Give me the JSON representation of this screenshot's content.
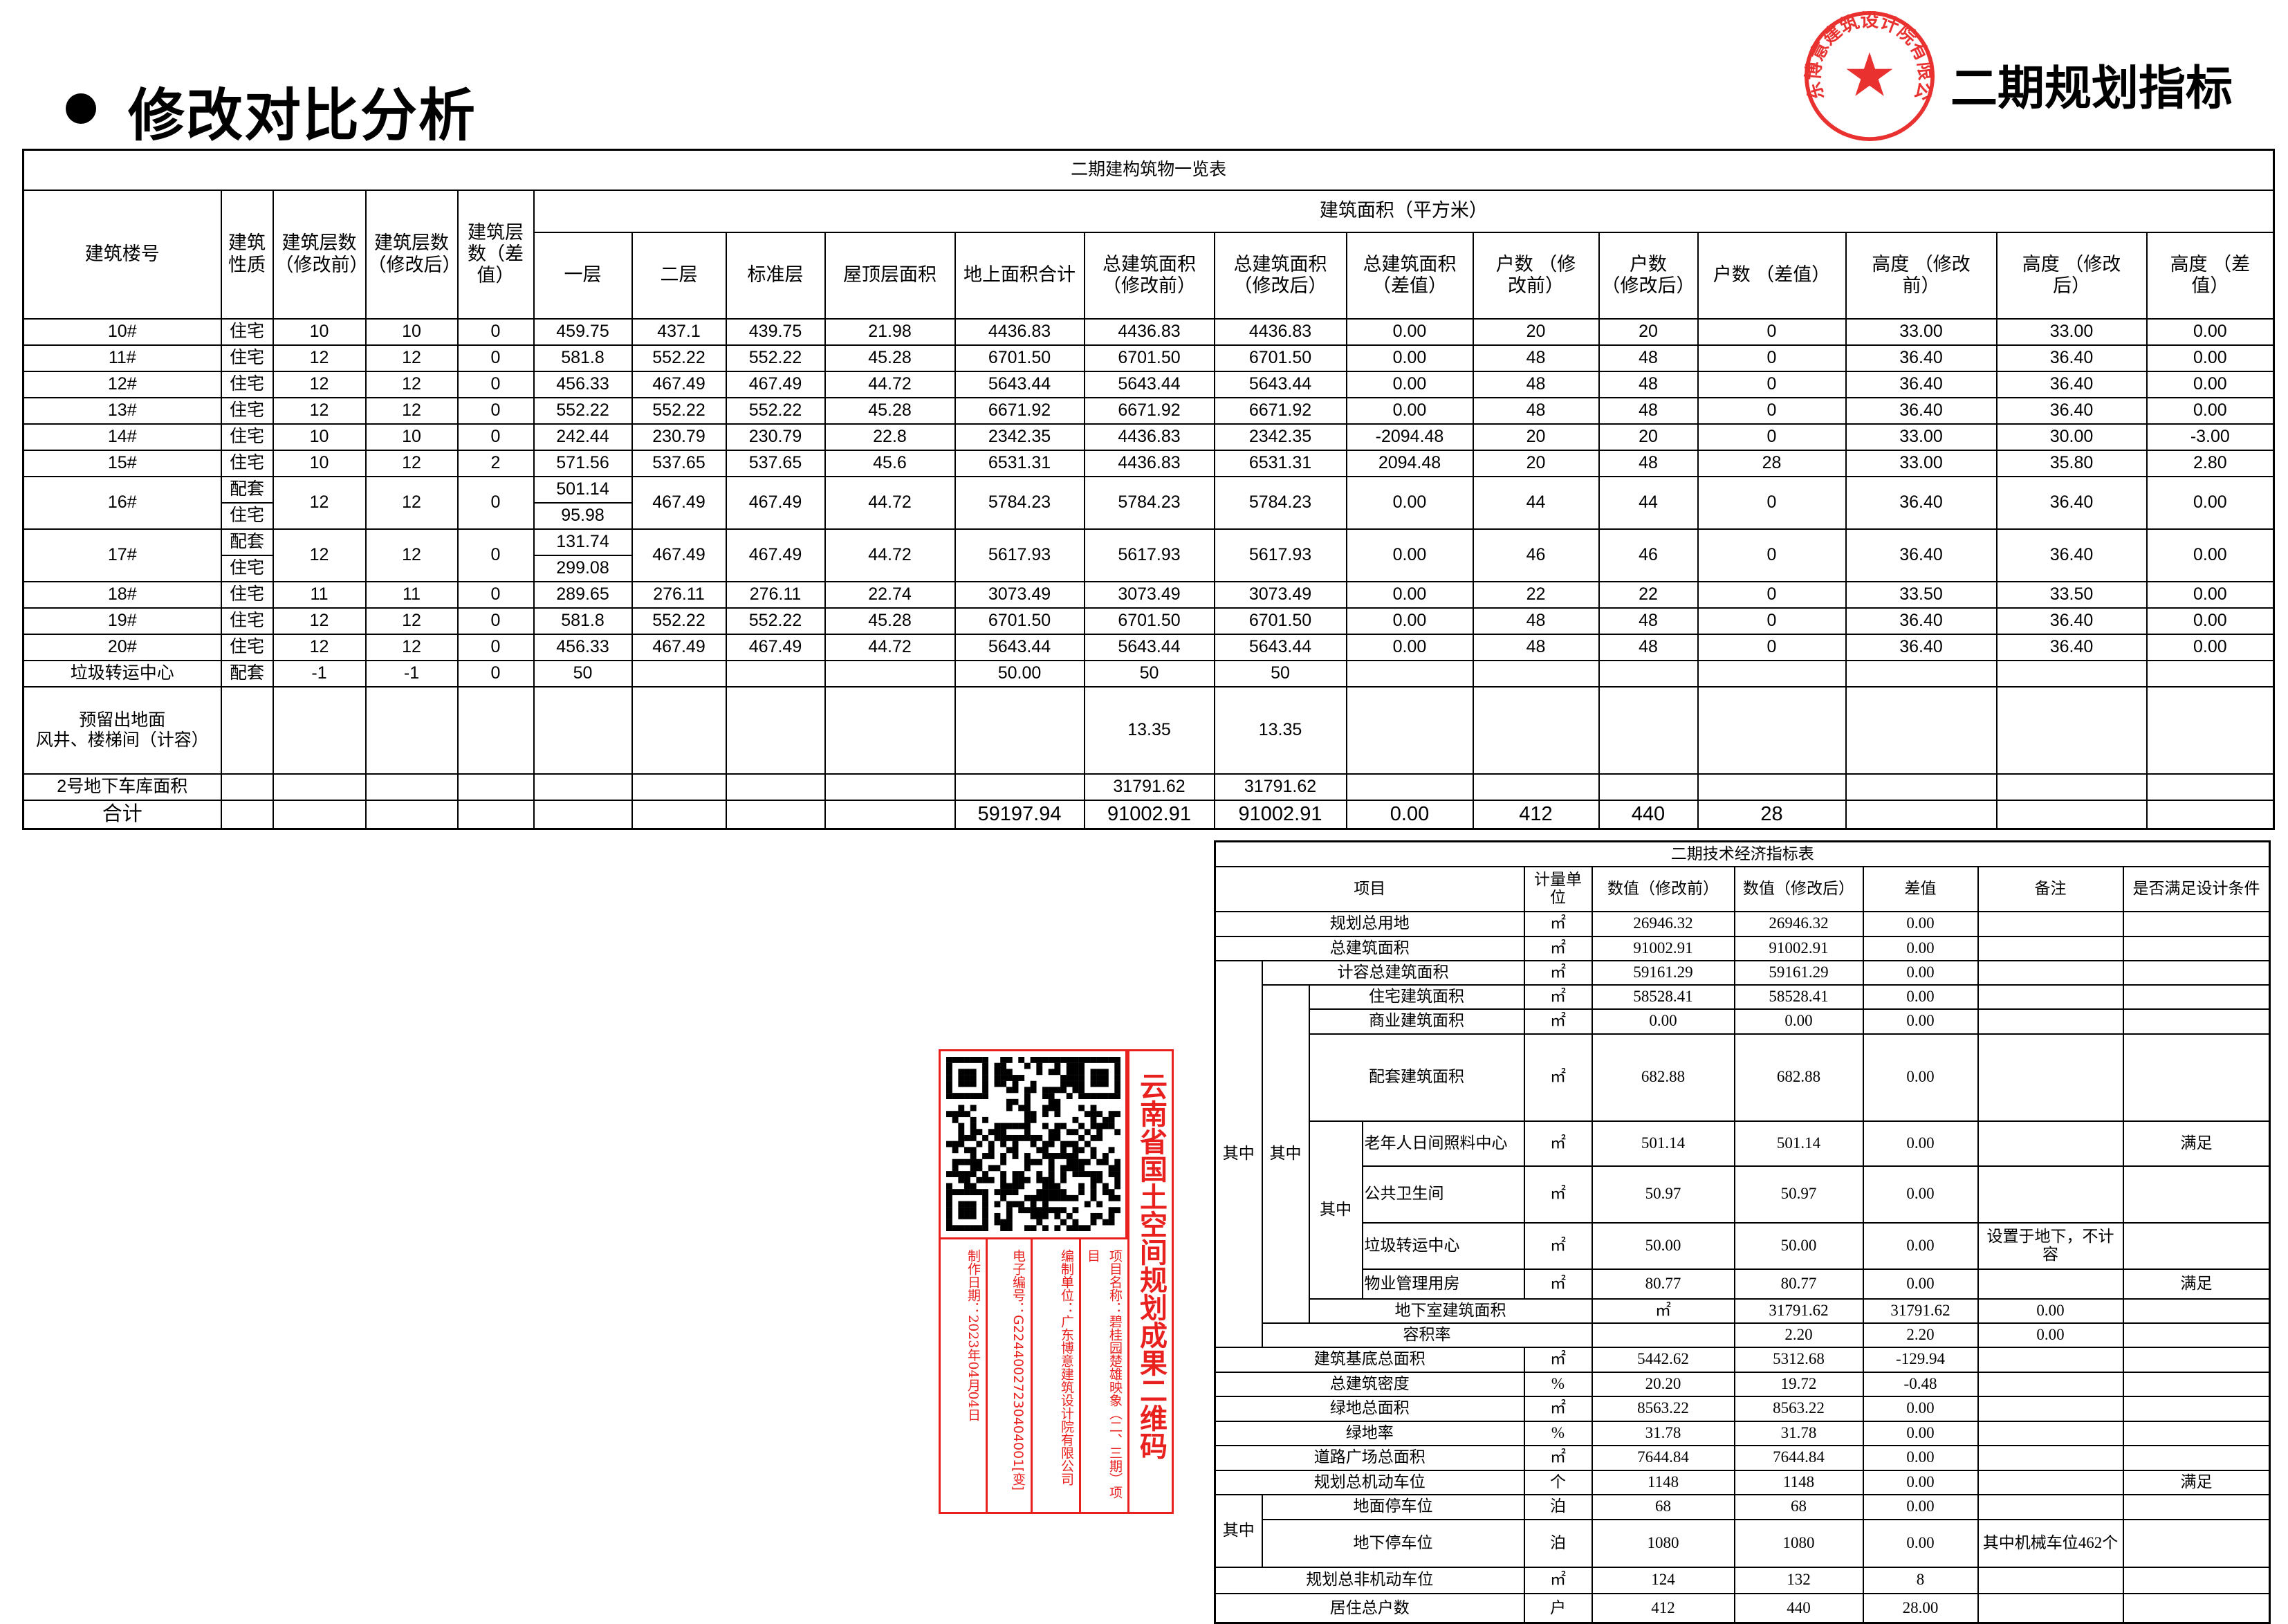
{
  "header": {
    "title": "修改对比分析",
    "right_title": "二期规划指标"
  },
  "stamp": {
    "text": "广东博意建筑设计院有限公司",
    "color": "#e8201e"
  },
  "top_table": {
    "title": "二期建构筑物一览表",
    "area_group": "建筑面积（平方米）",
    "fixed_headers": [
      "建筑楼号",
      "建筑\n性质",
      "建筑层数\n（修改前）",
      "建筑层数\n（修改后）",
      "建筑层\n数（差\n值）"
    ],
    "area_headers": [
      "一层",
      "二层",
      "标准层",
      "屋顶层面积",
      "地上面积合计",
      "总建筑面积\n（修改前）",
      "总建筑面积\n（修改后）",
      "总建筑面积\n（差值）",
      "户数 （修\n改前）",
      "户数\n（修改后）",
      "户数 （差值）",
      "高度 （修改\n前）",
      "高度 （修改\n后）",
      "高度 （差\n值）"
    ],
    "rows": [
      {
        "cells": [
          "10#",
          "住宅",
          "10",
          "10",
          "0",
          "459.75",
          "437.1",
          "439.75",
          "21.98",
          "4436.83",
          "4436.83",
          "4436.83",
          "0.00",
          "20",
          "20",
          "0",
          "33.00",
          "33.00",
          "0.00"
        ]
      },
      {
        "cells": [
          "11#",
          "住宅",
          "12",
          "12",
          "0",
          "581.8",
          "552.22",
          "552.22",
          "45.28",
          "6701.50",
          "6701.50",
          "6701.50",
          "0.00",
          "48",
          "48",
          "0",
          "36.40",
          "36.40",
          "0.00"
        ]
      },
      {
        "cells": [
          "12#",
          "住宅",
          "12",
          "12",
          "0",
          "456.33",
          "467.49",
          "467.49",
          "44.72",
          "5643.44",
          "5643.44",
          "5643.44",
          "0.00",
          "48",
          "48",
          "0",
          "36.40",
          "36.40",
          "0.00"
        ]
      },
      {
        "cells": [
          "13#",
          "住宅",
          "12",
          "12",
          "0",
          "552.22",
          "552.22",
          "552.22",
          "45.28",
          "6671.92",
          "6671.92",
          "6671.92",
          "0.00",
          "48",
          "48",
          "0",
          "36.40",
          "36.40",
          "0.00"
        ]
      },
      {
        "cells": [
          "14#",
          "住宅",
          "10",
          "10",
          "0",
          "242.44",
          "230.79",
          "230.79",
          "22.8",
          "2342.35",
          "4436.83",
          "2342.35",
          "-2094.48",
          "20",
          "20",
          "0",
          "33.00",
          "30.00",
          "-3.00"
        ]
      },
      {
        "cells": [
          "15#",
          "住宅",
          "10",
          "12",
          "2",
          "571.56",
          "537.65",
          "537.65",
          "45.6",
          "6531.31",
          "4436.83",
          "6531.31",
          "2094.48",
          "20",
          "48",
          "28",
          "33.00",
          "35.80",
          "2.80"
        ]
      },
      {
        "cells": [
          "16#",
          [
            "配套",
            "住宅"
          ],
          "12",
          "12",
          "0",
          [
            "501.14",
            "95.98"
          ],
          "467.49",
          "467.49",
          "44.72",
          "5784.23",
          "5784.23",
          "5784.23",
          "0.00",
          "44",
          "44",
          "0",
          "36.40",
          "36.40",
          "0.00"
        ]
      },
      {
        "cells": [
          "17#",
          [
            "配套",
            "住宅"
          ],
          "12",
          "12",
          "0",
          [
            "131.74",
            "299.08"
          ],
          "467.49",
          "467.49",
          "44.72",
          "5617.93",
          "5617.93",
          "5617.93",
          "0.00",
          "46",
          "46",
          "0",
          "36.40",
          "36.40",
          "0.00"
        ]
      },
      {
        "cells": [
          "18#",
          "住宅",
          "11",
          "11",
          "0",
          "289.65",
          "276.11",
          "276.11",
          "22.74",
          "3073.49",
          "3073.49",
          "3073.49",
          "0.00",
          "22",
          "22",
          "0",
          "33.50",
          "33.50",
          "0.00"
        ]
      },
      {
        "cells": [
          "19#",
          "住宅",
          "12",
          "12",
          "0",
          "581.8",
          "552.22",
          "552.22",
          "45.28",
          "6701.50",
          "6701.50",
          "6701.50",
          "0.00",
          "48",
          "48",
          "0",
          "36.40",
          "36.40",
          "0.00"
        ]
      },
      {
        "cells": [
          "20#",
          "住宅",
          "12",
          "12",
          "0",
          "456.33",
          "467.49",
          "467.49",
          "44.72",
          "5643.44",
          "5643.44",
          "5643.44",
          "0.00",
          "48",
          "48",
          "0",
          "36.40",
          "36.40",
          "0.00"
        ]
      },
      {
        "cells": [
          "垃圾转运中心",
          "配套",
          "-1",
          "-1",
          "0",
          "50",
          "",
          "",
          "",
          "50.00",
          "50",
          "50",
          "",
          "",
          "",
          "",
          "",
          "",
          ""
        ]
      },
      {
        "cells": [
          "预留出地面\n风井、楼梯间（计容）",
          "",
          "",
          "",
          "",
          "",
          "",
          "",
          "",
          "",
          "13.35",
          "13.35",
          "",
          "",
          "",
          "",
          "",
          "",
          ""
        ],
        "tall": true
      },
      {
        "cells": [
          "2号地下车库面积",
          "",
          "",
          "",
          "",
          "",
          "",
          "",
          "",
          "",
          "31791.62",
          "31791.62",
          "",
          "",
          "",
          "",
          "",
          "",
          ""
        ]
      },
      {
        "cells": [
          "合计",
          "",
          "",
          "",
          "",
          "",
          "",
          "",
          "",
          "59197.94",
          "91002.91",
          "91002.91",
          "0.00",
          "412",
          "440",
          "28",
          "",
          "",
          ""
        ],
        "total": true
      }
    ]
  },
  "low_table": {
    "title": "二期技术经济指标表",
    "headers": [
      "项目",
      "计量单\n位",
      "数值（修改前）",
      "数值（修改后）",
      "差值",
      "备注",
      "是否满足设计条件"
    ],
    "groups": [
      "其中",
      "其中",
      "其中",
      "其中"
    ],
    "rows": [
      {
        "item": "规划总用地",
        "unit": "㎡",
        "before": "26946.32",
        "after": "26946.32",
        "diff": "0.00",
        "note": "",
        "ok": ""
      },
      {
        "item": "总建筑面积",
        "unit": "㎡",
        "before": "91002.91",
        "after": "91002.91",
        "diff": "0.00",
        "note": "",
        "ok": ""
      },
      {
        "item": "计容总建筑面积",
        "unit": "㎡",
        "before": "59161.29",
        "after": "59161.29",
        "diff": "0.00",
        "note": "",
        "ok": ""
      },
      {
        "item": "住宅建筑面积",
        "unit": "㎡",
        "before": "58528.41",
        "after": "58528.41",
        "diff": "0.00",
        "note": "",
        "ok": ""
      },
      {
        "item": "商业建筑面积",
        "unit": "㎡",
        "before": "0.00",
        "after": "0.00",
        "diff": "0.00",
        "note": "",
        "ok": ""
      },
      {
        "item": "配套建筑面积",
        "unit": "㎡",
        "before": "682.88",
        "after": "682.88",
        "diff": "0.00",
        "note": "",
        "ok": ""
      },
      {
        "item": "老年人日间照料中心",
        "unit": "㎡",
        "before": "501.14",
        "after": "501.14",
        "diff": "0.00",
        "note": "",
        "ok": "满足"
      },
      {
        "item": "公共卫生间",
        "unit": "㎡",
        "before": "50.97",
        "after": "50.97",
        "diff": "0.00",
        "note": "",
        "ok": ""
      },
      {
        "item": "垃圾转运中心",
        "unit": "㎡",
        "before": "50.00",
        "after": "50.00",
        "diff": "0.00",
        "note": "设置于地下，不计容",
        "ok": ""
      },
      {
        "item": "物业管理用房",
        "unit": "㎡",
        "before": "80.77",
        "after": "80.77",
        "diff": "0.00",
        "note": "",
        "ok": "满足"
      },
      {
        "item": "地下室建筑面积",
        "unit": "㎡",
        "before": "31791.62",
        "after": "31791.62",
        "diff": "0.00",
        "note": "",
        "ok": ""
      },
      {
        "item": "容积率",
        "unit": "",
        "before": "2.20",
        "after": "2.20",
        "diff": "0.00",
        "note": "",
        "ok": ""
      },
      {
        "item": "建筑基底总面积",
        "unit": "㎡",
        "before": "5442.62",
        "after": "5312.68",
        "diff": "-129.94",
        "note": "",
        "ok": ""
      },
      {
        "item": "总建筑密度",
        "unit": "%",
        "before": "20.20",
        "after": "19.72",
        "diff": "-0.48",
        "note": "",
        "ok": ""
      },
      {
        "item": "绿地总面积",
        "unit": "㎡",
        "before": "8563.22",
        "after": "8563.22",
        "diff": "0.00",
        "note": "",
        "ok": ""
      },
      {
        "item": "绿地率",
        "unit": "%",
        "before": "31.78",
        "after": "31.78",
        "diff": "0.00",
        "note": "",
        "ok": ""
      },
      {
        "item": "道路广场总面积",
        "unit": "㎡",
        "before": "7644.84",
        "after": "7644.84",
        "diff": "0.00",
        "note": "",
        "ok": ""
      },
      {
        "item": "规划总机动车位",
        "unit": "个",
        "before": "1148",
        "after": "1148",
        "diff": "0.00",
        "note": "",
        "ok": "满足"
      },
      {
        "item": "地面停车位",
        "unit": "泊",
        "before": "68",
        "after": "68",
        "diff": "0.00",
        "note": "",
        "ok": ""
      },
      {
        "item": "地下停车位",
        "unit": "泊",
        "before": "1080",
        "after": "1080",
        "diff": "0.00",
        "note": "其中机械车位462个",
        "ok": ""
      },
      {
        "item": "规划总非机动车位",
        "unit": "㎡",
        "before": "124",
        "after": "132",
        "diff": "8",
        "note": "",
        "ok": ""
      },
      {
        "item": "居住总户数",
        "unit": "户",
        "before": "412",
        "after": "440",
        "diff": "28.00",
        "note": "",
        "ok": ""
      }
    ]
  },
  "qr_card": {
    "heading": "云南省国土空间规划成果二维码",
    "project": "项目名称：碧桂园楚雄映象（二、三期）项目",
    "unit": "编制单位：广东博意建筑设计院有限公司",
    "code": "电子编号：G22440027230404001[变]",
    "date": "制作日期：2023年04月04日",
    "color": "#e8201e"
  }
}
